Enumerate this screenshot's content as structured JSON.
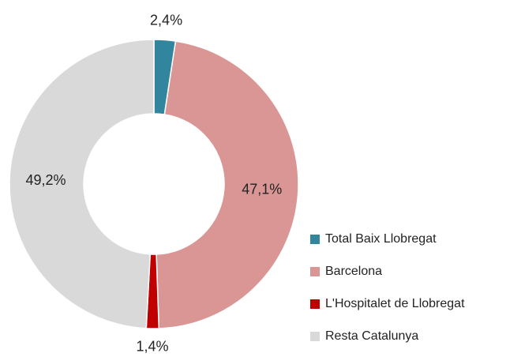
{
  "chart_data": {
    "type": "donut",
    "categories": [
      "Total Baix Llobregat",
      "Barcelona",
      "L'Hospitalet de Llobregat",
      "Resta Catalunya"
    ],
    "values": [
      2.4,
      47.1,
      1.4,
      49.2
    ],
    "value_labels": [
      "2,4%",
      "47,1%",
      "1,4%",
      "49,2%"
    ],
    "colors": [
      "#31859c",
      "#d99694",
      "#c00000",
      "#d9d9d9"
    ],
    "legend": "right"
  }
}
